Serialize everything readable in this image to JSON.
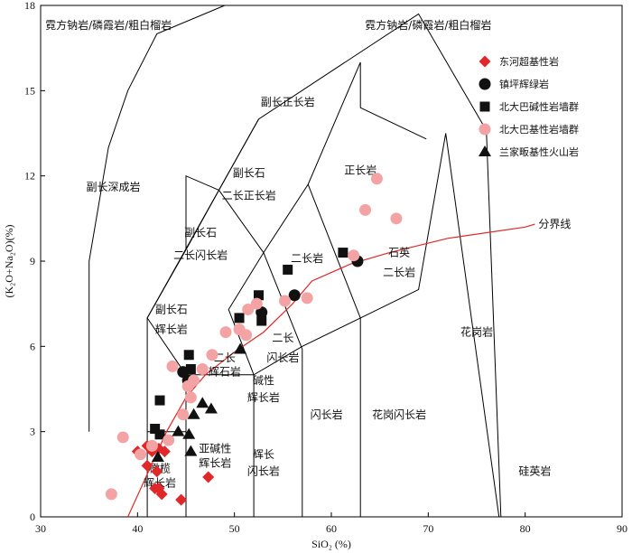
{
  "chart_data": {
    "type": "scatter",
    "xlabel": "SiO₂ (%)",
    "ylabel": "(K₂O+Na₂O)(%)",
    "xlim": [
      30,
      90
    ],
    "ylim": [
      0,
      18
    ],
    "xticks": [
      "30",
      "40",
      "50",
      "60",
      "70",
      "80",
      "90"
    ],
    "yticks": [
      "0",
      "3",
      "6",
      "9",
      "12",
      "15",
      "18"
    ],
    "grid": false,
    "legend_position": "top-right",
    "boundary_label": "分界线",
    "boundary_curve": [
      [
        39,
        0
      ],
      [
        41,
        1.5
      ],
      [
        43,
        3
      ],
      [
        45,
        4.2
      ],
      [
        47,
        5
      ],
      [
        50,
        5.8
      ],
      [
        53,
        6.5
      ],
      [
        56,
        7.5
      ],
      [
        58,
        8.3
      ],
      [
        62,
        8.9
      ],
      [
        66,
        9.3
      ],
      [
        72,
        9.8
      ],
      [
        80,
        10.2
      ],
      [
        81,
        10.3
      ]
    ],
    "region_boundaries": [
      [
        [
          41,
          0
        ],
        [
          41,
          7
        ],
        [
          52.5,
          14
        ],
        [
          69,
          17.7
        ],
        [
          76,
          13.6
        ],
        [
          77.5,
          0
        ]
      ],
      [
        [
          41,
          3
        ],
        [
          45,
          3
        ],
        [
          45,
          5
        ],
        [
          52,
          5
        ],
        [
          57,
          6
        ],
        [
          63,
          7
        ],
        [
          69,
          8
        ],
        [
          71.8,
          13.5
        ],
        [
          77.3,
          0
        ]
      ],
      [
        [
          45,
          0
        ],
        [
          45,
          5
        ]
      ],
      [
        [
          52,
          0
        ],
        [
          52,
          5
        ]
      ],
      [
        [
          57,
          0
        ],
        [
          57,
          5.9
        ]
      ],
      [
        [
          63,
          0
        ],
        [
          63,
          7
        ]
      ],
      [
        [
          52,
          5
        ],
        [
          49.4,
          7.3
        ],
        [
          53,
          9.3
        ],
        [
          57.6,
          11.7
        ],
        [
          63,
          16
        ],
        [
          63,
          14.4
        ],
        [
          69.8,
          13.3
        ]
      ],
      [
        [
          45,
          5
        ],
        [
          41,
          7
        ]
      ],
      [
        [
          45,
          9.4
        ],
        [
          48.4,
          11.5
        ],
        [
          53,
          9.3
        ]
      ],
      [
        [
          48.4,
          11.5
        ],
        [
          52.5,
          14
        ]
      ],
      [
        [
          57,
          5.9
        ],
        [
          53,
          9.3
        ]
      ],
      [
        [
          63,
          7
        ],
        [
          57.6,
          11.7
        ]
      ],
      [
        [
          35,
          3
        ],
        [
          35,
          9
        ],
        [
          37,
          13
        ],
        [
          39,
          15
        ],
        [
          42,
          17
        ],
        [
          49,
          18
        ]
      ],
      [
        [
          45,
          9.4
        ],
        [
          45,
          12
        ],
        [
          48.4,
          11.5
        ]
      ],
      [
        [
          41,
          7
        ],
        [
          45,
          9.4
        ]
      ]
    ],
    "region_labels": [
      {
        "text": "霓方钠岩/磷霞岩/粗白榴岩",
        "x": 37,
        "y": 17.3
      },
      {
        "text": "霓方钠岩/磷霞岩/粗白榴岩",
        "x": 70,
        "y": 17.3
      },
      {
        "text": "副长正长岩",
        "x": 55.5,
        "y": 14.6
      },
      {
        "text": "副长深成岩",
        "x": 37.5,
        "y": 11.6
      },
      {
        "text": "副长石",
        "x": 51.5,
        "y": 12.1
      },
      {
        "text": "二长正长岩",
        "x": 51.5,
        "y": 11.3
      },
      {
        "text": "正长岩",
        "x": 63,
        "y": 12.2
      },
      {
        "text": "副长石",
        "x": 46.5,
        "y": 10
      },
      {
        "text": "二长闪长岩",
        "x": 46.5,
        "y": 9.2
      },
      {
        "text": "二长岩",
        "x": 57.5,
        "y": 9.1
      },
      {
        "text": "石英",
        "x": 67,
        "y": 9.3
      },
      {
        "text": "二长岩",
        "x": 67,
        "y": 8.6
      },
      {
        "text": "副长石",
        "x": 43.5,
        "y": 7.3
      },
      {
        "text": "辉长岩",
        "x": 43.5,
        "y": 6.6
      },
      {
        "text": "二长",
        "x": 55,
        "y": 6.3
      },
      {
        "text": "闪长岩",
        "x": 55,
        "y": 5.6
      },
      {
        "text": "二长",
        "x": 49,
        "y": 5.6
      },
      {
        "text": "辉石岩",
        "x": 49,
        "y": 5.1
      },
      {
        "text": "碱性",
        "x": 53,
        "y": 4.8
      },
      {
        "text": "辉长岩",
        "x": 53,
        "y": 4.2
      },
      {
        "text": "亚碱性",
        "x": 48,
        "y": 2.4
      },
      {
        "text": "辉长岩",
        "x": 48,
        "y": 1.9
      },
      {
        "text": "辉长",
        "x": 53,
        "y": 2.2
      },
      {
        "text": "闪长岩",
        "x": 53,
        "y": 1.6
      },
      {
        "text": "闪长岩",
        "x": 59.5,
        "y": 3.6
      },
      {
        "text": "花岗闪长岩",
        "x": 67,
        "y": 3.6
      },
      {
        "text": "花岗岩",
        "x": 75,
        "y": 6.5
      },
      {
        "text": "硅英岩",
        "x": 81,
        "y": 1.6
      },
      {
        "text": "橄榄",
        "x": 42.3,
        "y": 1.7
      },
      {
        "text": "辉长岩",
        "x": 42.3,
        "y": 1.2
      }
    ],
    "series": [
      {
        "name": "东河超基性岩",
        "marker": "diamond",
        "color": "#e0282a",
        "points": [
          [
            40,
            2.3
          ],
          [
            41,
            2.5
          ],
          [
            41.5,
            2.3
          ],
          [
            42.2,
            2.4
          ],
          [
            42.8,
            2.3
          ],
          [
            41,
            1.8
          ],
          [
            42,
            1.6
          ],
          [
            41.8,
            1
          ],
          [
            42.2,
            1
          ],
          [
            42.5,
            0.8
          ],
          [
            44.5,
            0.6
          ],
          [
            47.3,
            1.4
          ]
        ]
      },
      {
        "name": "镇坪辉绿岩",
        "marker": "circle",
        "color": "#111111",
        "points": [
          [
            52.8,
            7.2
          ],
          [
            56.2,
            7.8
          ],
          [
            62.7,
            9
          ],
          [
            44.7,
            5.1
          ],
          [
            45.2,
            4.8
          ]
        ]
      },
      {
        "name": "北大巴碱性岩墙群",
        "marker": "square",
        "color": "#111111",
        "points": [
          [
            52.5,
            7.8
          ],
          [
            55.5,
            8.7
          ],
          [
            61.2,
            9.3
          ],
          [
            52.8,
            6.9
          ],
          [
            50.5,
            7
          ],
          [
            45.3,
            5.7
          ],
          [
            45.5,
            5.2
          ],
          [
            42.3,
            4.1
          ],
          [
            41.8,
            3.1
          ],
          [
            42.3,
            2.9
          ]
        ]
      },
      {
        "name": "北大巴基性岩墙群",
        "marker": "circle",
        "color": "#f4a3a5",
        "points": [
          [
            37.3,
            0.8
          ],
          [
            38.5,
            2.8
          ],
          [
            40.3,
            2.2
          ],
          [
            41.5,
            2.5
          ],
          [
            43.2,
            2.7
          ],
          [
            44.7,
            3.6
          ],
          [
            45.2,
            4.6
          ],
          [
            45.5,
            4.2
          ],
          [
            46.7,
            5.2
          ],
          [
            47.7,
            5.7
          ],
          [
            49.1,
            6.5
          ],
          [
            50.5,
            6.6
          ],
          [
            51.4,
            7.3
          ],
          [
            52.3,
            7.5
          ],
          [
            51.2,
            6.4
          ],
          [
            55.2,
            7.6
          ],
          [
            57.5,
            7.7
          ],
          [
            64.7,
            11.9
          ],
          [
            63.5,
            10.8
          ],
          [
            66.7,
            10.5
          ],
          [
            62.3,
            9.2
          ],
          [
            43.6,
            5.3
          ],
          [
            45.8,
            4.8
          ]
        ]
      },
      {
        "name": "兰家畈基性火山岩",
        "marker": "triangle",
        "color": "#111111",
        "points": [
          [
            42.1,
            2.1
          ],
          [
            44.2,
            3
          ],
          [
            45.3,
            2.9
          ],
          [
            45.5,
            2.3
          ],
          [
            45.8,
            3.6
          ],
          [
            46.7,
            4
          ],
          [
            47.6,
            3.8
          ],
          [
            50.6,
            5.9
          ]
        ]
      }
    ]
  }
}
